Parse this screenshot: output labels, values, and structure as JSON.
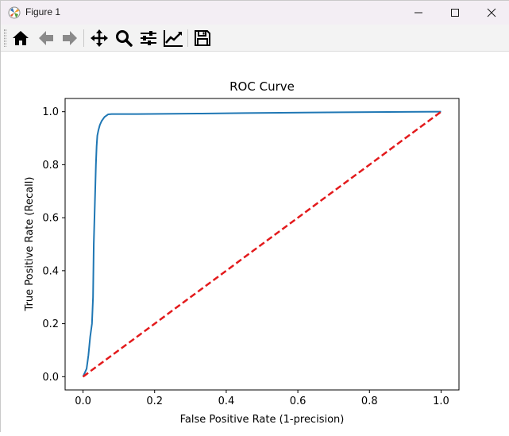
{
  "window": {
    "title": "Figure 1",
    "controls": [
      "minimize",
      "maximize",
      "close"
    ]
  },
  "toolbar": {
    "buttons": [
      {
        "name": "home",
        "icon": "home-icon"
      },
      {
        "name": "back",
        "icon": "arrow-left-icon"
      },
      {
        "name": "forward",
        "icon": "arrow-right-icon"
      },
      {
        "name": "pan",
        "icon": "move-icon"
      },
      {
        "name": "zoom",
        "icon": "magnifier-icon"
      },
      {
        "name": "configure-subplots",
        "icon": "sliders-icon"
      },
      {
        "name": "edit-axis",
        "icon": "line-chart-icon"
      },
      {
        "name": "save",
        "icon": "floppy-disk-icon"
      }
    ]
  },
  "chart_data": {
    "type": "line",
    "title": "ROC Curve",
    "xlabel": "False Positive Rate (1-precision)",
    "ylabel": "True Positive Rate (Recall)",
    "xlim": [
      -0.05,
      1.05
    ],
    "ylim": [
      -0.05,
      1.05
    ],
    "xticks": [
      "0.0",
      "0.2",
      "0.4",
      "0.6",
      "0.8",
      "1.0"
    ],
    "yticks": [
      "0.0",
      "0.2",
      "0.4",
      "0.6",
      "0.8",
      "1.0"
    ],
    "grid": false,
    "series": [
      {
        "color": "#1f77b4",
        "style": "solid",
        "x": [
          0.0,
          0.01,
          0.015,
          0.02,
          0.025,
          0.028,
          0.03,
          0.033,
          0.036,
          0.038,
          0.04,
          0.043,
          0.047,
          0.052,
          0.06,
          0.07,
          0.08,
          0.15,
          0.32,
          0.45,
          0.72,
          1.0
        ],
        "y": [
          0.0,
          0.03,
          0.08,
          0.15,
          0.2,
          0.3,
          0.5,
          0.65,
          0.8,
          0.87,
          0.91,
          0.93,
          0.95,
          0.965,
          0.98,
          0.99,
          0.991,
          0.991,
          0.993,
          0.995,
          0.998,
          1.0
        ]
      },
      {
        "color": "#e31a1c",
        "style": "dashed",
        "x": [
          0.0,
          1.0
        ],
        "y": [
          0.0,
          1.0
        ]
      }
    ]
  }
}
